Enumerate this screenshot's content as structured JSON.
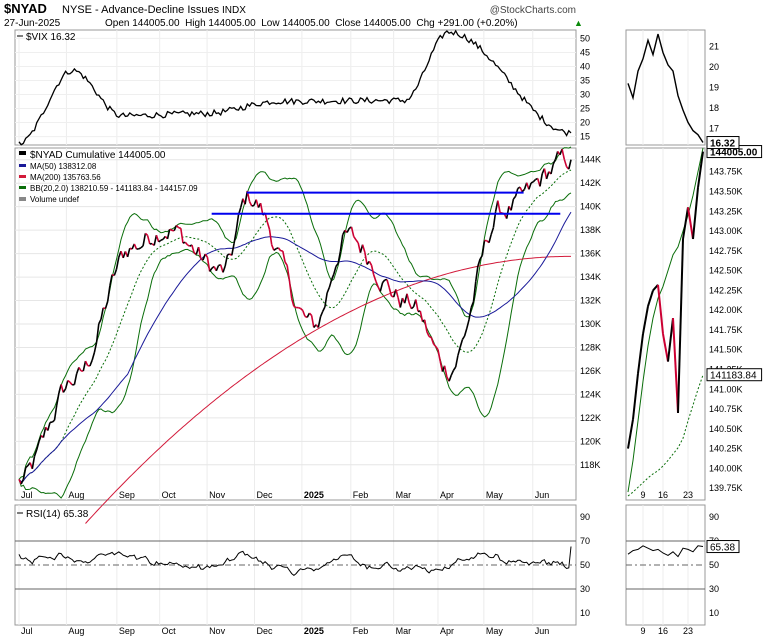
{
  "header": {
    "symbol": "$NYAD",
    "exchange": "NYSE - Advance-Decline Issues",
    "exchange_type": "INDX",
    "date": "27-Jun-2025",
    "quote": "Open 144005.00  High 144005.00  Low 144005.00  Close 144005.00  Chg +291.00 (+0.20%)",
    "up_arrow": "▲",
    "copyright": "@StockCharts.com"
  },
  "colors": {
    "price": "#000000",
    "down": "#cc0033",
    "ma50": "#1a1a99",
    "ma200": "#d21a3a",
    "bb": "#0a6e0a",
    "resistance": "#0000ee",
    "grid": "#cccccc"
  },
  "chart_data": [
    {
      "type": "line",
      "title": "$VIX 16.32",
      "series": [
        {
          "name": "$VIX",
          "last": 16.32
        }
      ],
      "y_ticks": [
        "50",
        "45",
        "40",
        "35",
        "30",
        "25",
        "20",
        "15"
      ],
      "zoom_y_ticks": [
        "21",
        "20",
        "19",
        "18",
        "17"
      ],
      "last_label": "16.32",
      "ylim": [
        12,
        53
      ],
      "zoom_ylim": [
        16.2,
        21.8
      ],
      "key_points": [
        {
          "x": "2024-07-01",
          "y": 12.5
        },
        {
          "x": "2024-08-05",
          "y": 38.6
        },
        {
          "x": "2024-09-06",
          "y": 22.4
        },
        {
          "x": "2024-10-31",
          "y": 23.2
        },
        {
          "x": "2024-12-18",
          "y": 27.6
        },
        {
          "x": "2025-03-10",
          "y": 27.9
        },
        {
          "x": "2025-04-08",
          "y": 52.3
        },
        {
          "x": "2025-06-27",
          "y": 16.32
        }
      ]
    },
    {
      "type": "line",
      "title": "$NYAD Cumulative 144005.00",
      "series": [
        {
          "name": "$NYAD Cumulative",
          "last": 144005.0
        },
        {
          "name": "MA(50)",
          "last": 138312.08
        },
        {
          "name": "MA(200)",
          "last": 135763.56
        },
        {
          "name": "BB(20,2.0)",
          "values": [
            138210.59,
            141183.84,
            144157.09
          ]
        }
      ],
      "legend": [
        "$NYAD Cumulative 144005.00",
        "MA(50) 138312.08",
        "MA(200) 135763.56",
        "BB(20,2.0) 138210.59 - 141183.84 - 144157.09",
        "Volume undef"
      ],
      "x_labels": [
        "Jul",
        "Aug",
        "Sep",
        "Oct",
        "Nov",
        "Dec",
        "2025",
        "Feb",
        "Mar",
        "Apr",
        "May",
        "Jun"
      ],
      "y_ticks": [
        "144K",
        "142K",
        "140K",
        "138K",
        "136K",
        "134K",
        "132K",
        "130K",
        "128K",
        "126K",
        "124K",
        "122K",
        "120K",
        "118K"
      ],
      "ylim": [
        115000,
        145000
      ],
      "zoom_x_labels": [
        "9",
        "16",
        "23"
      ],
      "zoom_y_ticks": [
        "144005.00",
        "143.75K",
        "143.50K",
        "143.25K",
        "143.00K",
        "142.75K",
        "142.50K",
        "142.25K",
        "142.00K",
        "141.75K",
        "141.50K",
        "141.25K",
        "141183.84",
        "141.00K",
        "140.75K",
        "140.50K",
        "140.25K",
        "140.00K",
        "139.75K"
      ],
      "zoom_ylim": [
        139600,
        144050
      ],
      "resistance_lines": [
        {
          "from": "2024-11-27",
          "to": "2025-05-27",
          "y": 141200
        },
        {
          "from": "2024-11-04",
          "to": "2025-06-20",
          "y": 139400
        }
      ],
      "key_points": [
        {
          "x": "2024-07-01",
          "y": 116500
        },
        {
          "x": "2024-08-07",
          "y": 125300
        },
        {
          "x": "2024-09-13",
          "y": 136600
        },
        {
          "x": "2024-10-04",
          "y": 138200
        },
        {
          "x": "2024-11-12",
          "y": 134400
        },
        {
          "x": "2024-11-28",
          "y": 140800
        },
        {
          "x": "2025-01-10",
          "y": 129800
        },
        {
          "x": "2025-01-31",
          "y": 137400
        },
        {
          "x": "2025-03-13",
          "y": 131800
        },
        {
          "x": "2025-04-08",
          "y": 126200
        },
        {
          "x": "2025-05-13",
          "y": 139700
        },
        {
          "x": "2025-06-27",
          "y": 144005
        }
      ]
    },
    {
      "type": "line",
      "title": "RSI(14) 65.38",
      "series": [
        {
          "name": "RSI(14)",
          "last": 65.38
        }
      ],
      "y_ticks": [
        "90",
        "70",
        "50",
        "30",
        "10"
      ],
      "zoom_y_ticks": [
        "90",
        "70",
        "50",
        "30",
        "10"
      ],
      "last_label": "65.38",
      "ylim": [
        0,
        100
      ],
      "reference_lines": [
        70,
        50,
        30
      ]
    }
  ]
}
